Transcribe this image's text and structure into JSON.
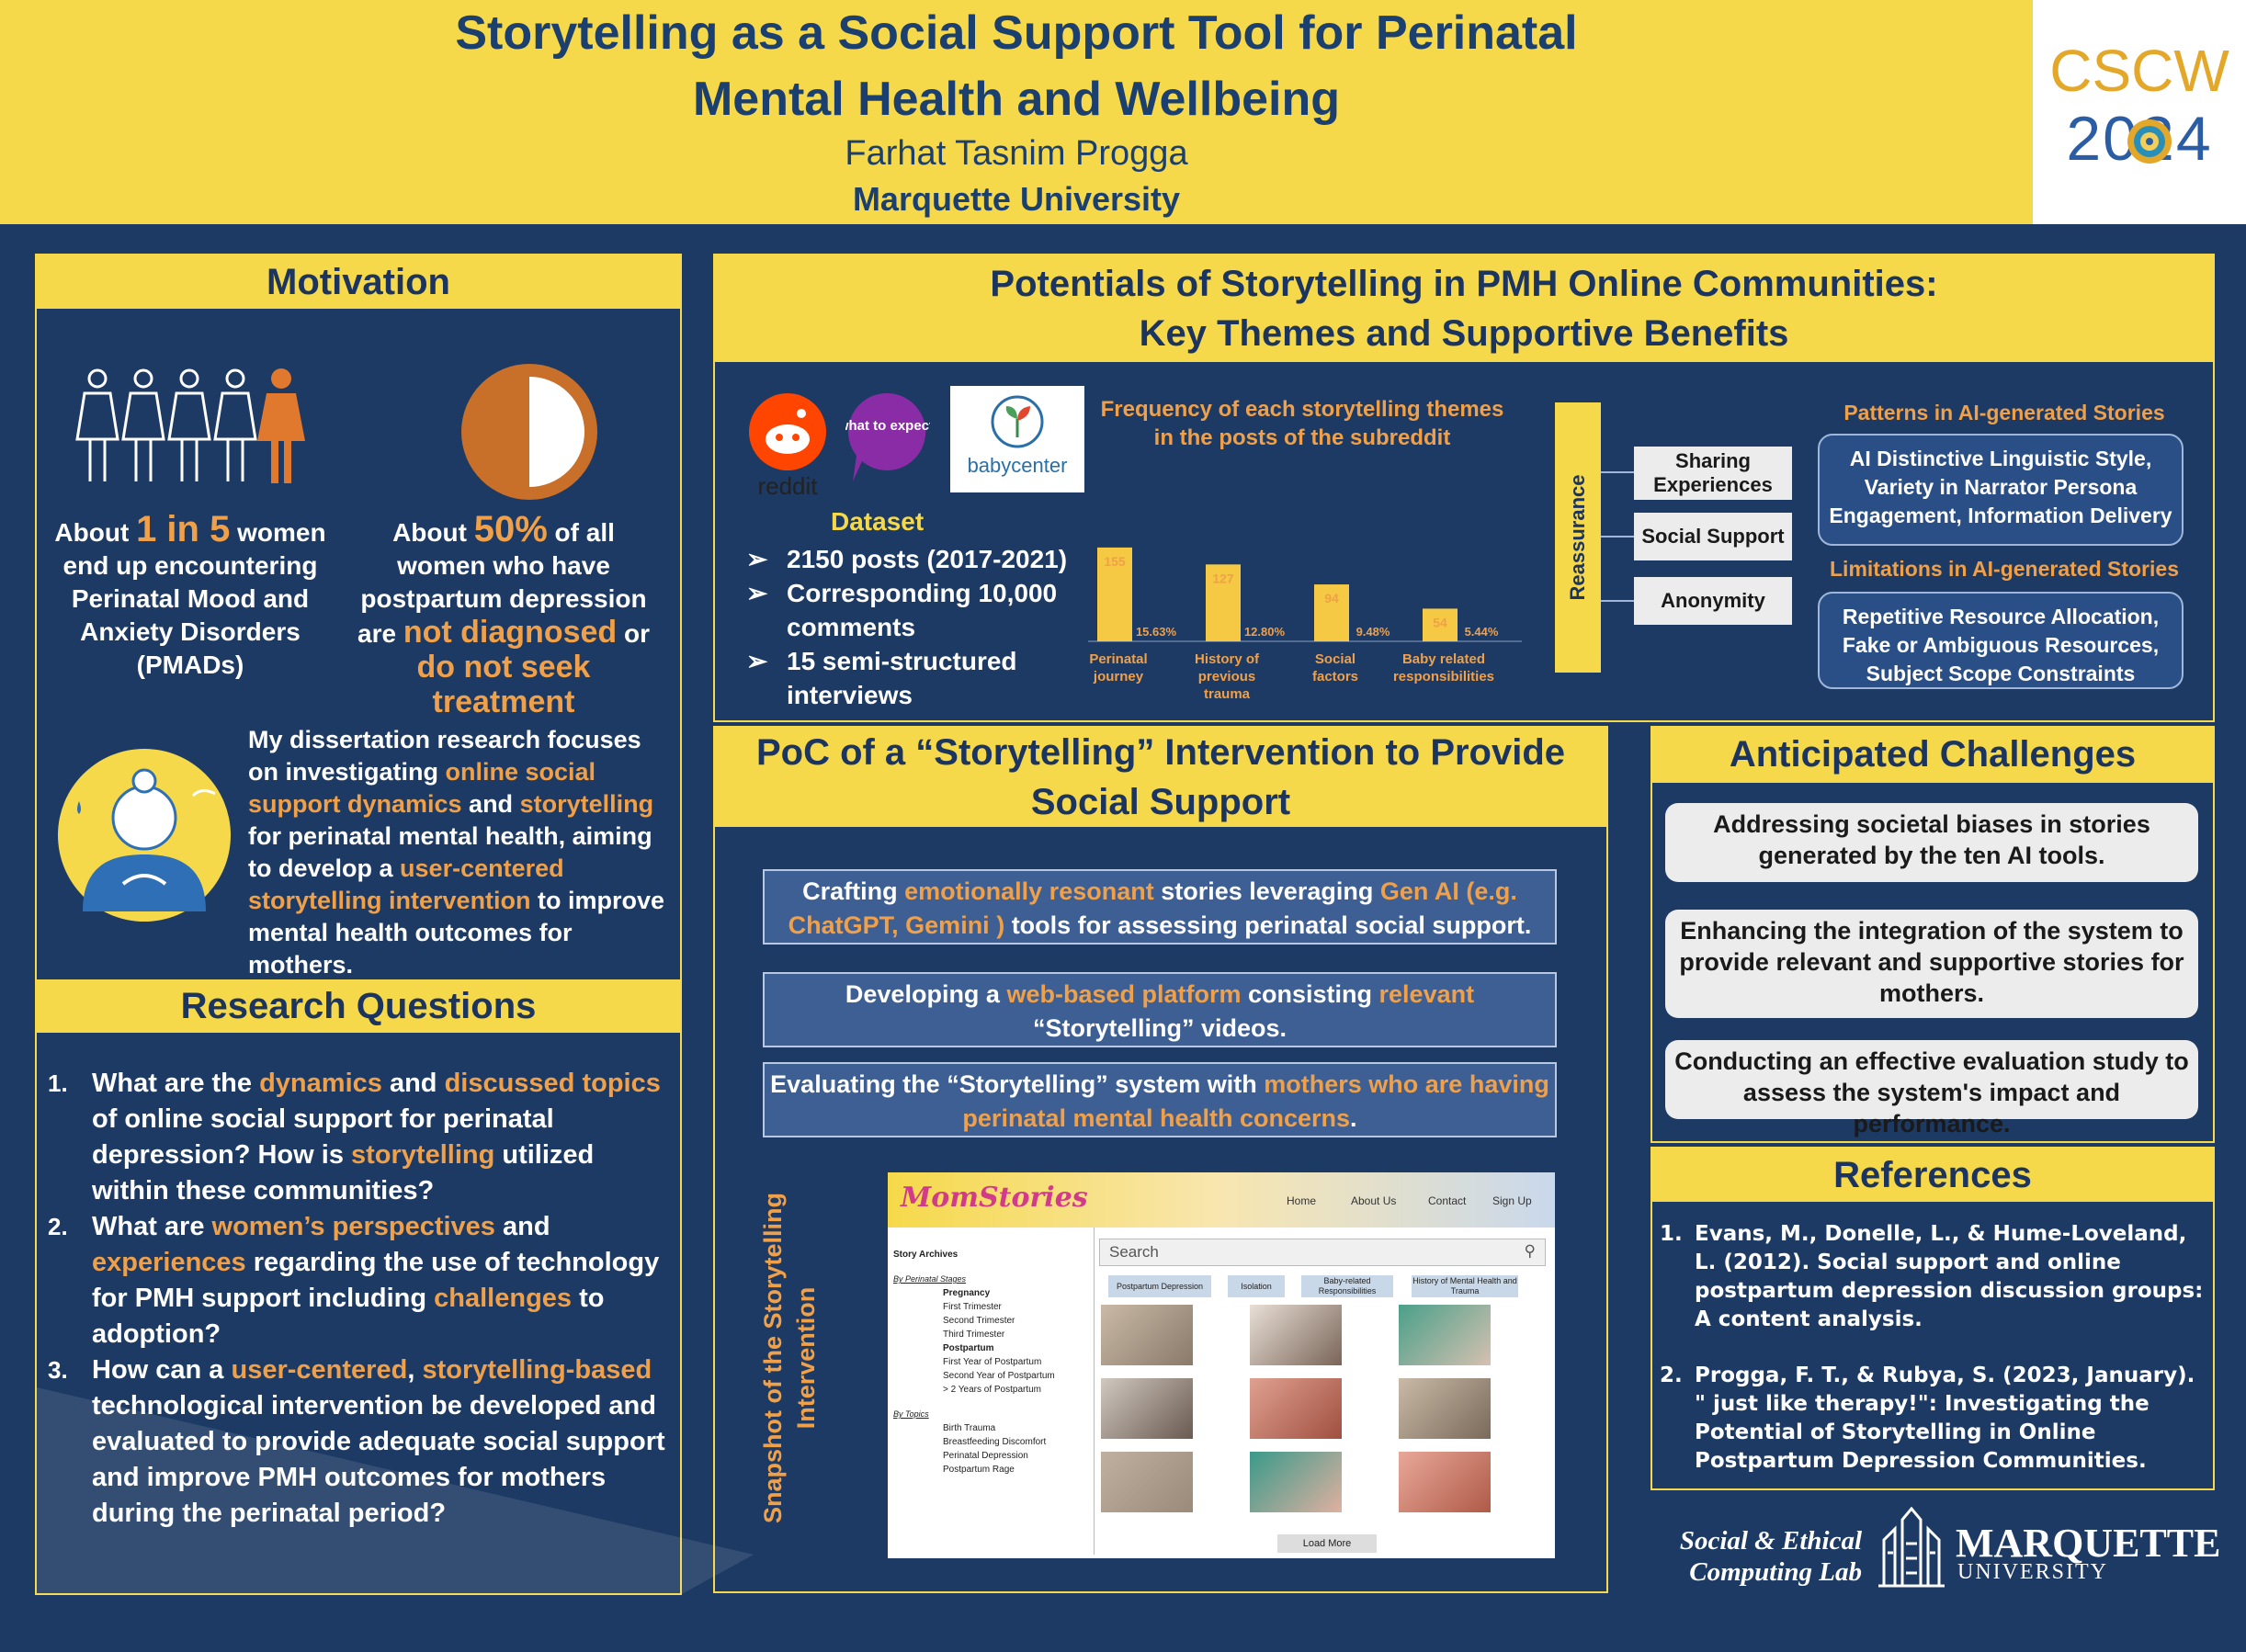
{
  "header": {
    "title_line1": "Storytelling as a Social Support Tool for Perinatal",
    "title_line2": "Mental Health and Wellbeing",
    "author": "Farhat Tasnim Progga",
    "affiliation": "Marquette University",
    "conf_word": "CSCW",
    "conf_year": "2024"
  },
  "motivation": {
    "title": "Motivation",
    "stat1": {
      "pre": "About ",
      "highlight": "1 in 5",
      "post": " women end up  encountering Perinatal Mood and Anxiety Disorders (PMADs)"
    },
    "stat2": {
      "pre": "About ",
      "highlight": "50%",
      "mid1": " of all women who have postpartum depression are ",
      "h2": "not diagnosed",
      "mid2": " or ",
      "h3": "do not seek treatment"
    },
    "dissertation": {
      "a": "My dissertation research focuses on investigating ",
      "h1": "online social support dynamics",
      "b": " and ",
      "h2": "storytelling",
      "c": " for perinatal mental health, aiming to develop a ",
      "h3": "user-centered storytelling intervention",
      "d": " to improve mental health outcomes for mothers."
    }
  },
  "research_questions": {
    "title": "Research Questions",
    "items": [
      {
        "num": "1.",
        "a": "What are the ",
        "h1": "dynamics",
        "b": " and ",
        "h2": "discussed topics",
        "c": " of online social support for perinatal depression? How is ",
        "h3": "storytelling",
        "d": " utilized within these communities?"
      },
      {
        "num": "2.",
        "a": "What are ",
        "h1": "women’s perspectives",
        "b": " and ",
        "h2": "experiences",
        "c": " regarding the use of technology for PMH support including ",
        "h3": "challenges ",
        "d": " to adoption?"
      },
      {
        "num": "3.",
        "a": "How can a ",
        "h1": "user-centered",
        "b": ", ",
        "h2": "storytelling-based",
        "c": " technological intervention be developed and evaluated to provide adequate social support and improve PMH outcomes for mothers during the perinatal period?",
        "h3": "",
        "d": ""
      }
    ]
  },
  "potentials": {
    "title_line1": "Potentials of Storytelling in PMH Online Communities:",
    "title_line2": "Key Themes and Supportive Benefits",
    "sources": [
      "reddit",
      "what to expect.",
      "babycenter"
    ],
    "dataset_label": "Dataset",
    "dataset_items": [
      "2150 posts (2017-2021)",
      "Corresponding 10,000 comments",
      "15 semi-structured interviews"
    ],
    "chart_title": "Frequency of each storytelling themes in the posts of the subreddit",
    "reassurance_label": "Reassurance",
    "reassurance_items": [
      "Sharing Experiences",
      "Social Support",
      "Anonymity"
    ],
    "patterns_label": "Patterns in AI-generated Stories",
    "patterns_text": "AI Distinctive Linguistic Style, Variety in Narrator Persona Engagement, Information Delivery",
    "limits_label": "Limitations in AI-generated Stories",
    "limits_text": "Repetitive Resource Allocation, Fake or Ambiguous Resources, Subject Scope Constraints"
  },
  "chart_data": {
    "type": "bar",
    "title": "Frequency of each storytelling themes in the posts of the subreddit",
    "categories": [
      "Perinatal journey",
      "History of previous trauma",
      "Social factors",
      "Baby related responsibilities"
    ],
    "values": [
      155,
      127,
      94,
      54
    ],
    "percent_labels": [
      "15.63%",
      "12.80%",
      "9.48%",
      "5.44%"
    ],
    "xlabel": "",
    "ylabel": "",
    "ylim": [
      0,
      170
    ],
    "grid": false,
    "bar_color": "#f6c944",
    "label_color": "#f0a048"
  },
  "poc": {
    "title_line1": "PoC of a “Storytelling” Intervention to Provide",
    "title_line2": "Social Support",
    "box1": {
      "a": "Crafting ",
      "h1": "emotionally resonant",
      "b": " stories leveraging ",
      "h2": "Gen AI (e.g. ChatGPT, Gemini )",
      "c": " tools for assessing perinatal social support."
    },
    "box2": {
      "a": "Developing a ",
      "h1": "web-based platform",
      "b": " consisting ",
      "h2": "relevant",
      "c": " “Storytelling” videos."
    },
    "box3": {
      "a": "Evaluating the “Storytelling” system with ",
      "h1": "mothers who are having perinatal mental health concerns",
      "b": "."
    },
    "snapshot_caption": "Snapshot of the Storytelling Intervention",
    "snapshot": {
      "logo": "MomStories",
      "nav": [
        "Home",
        "About Us",
        "Contact",
        "Sign Up"
      ],
      "search_placeholder": "Search",
      "archive_title": "Story Archives",
      "by_stages": "By Perinatal Stages",
      "pregnancy": "Pregnancy",
      "preg_items": [
        "First Trimester",
        "Second Trimester",
        "Third Trimester"
      ],
      "postpartum": "Postpartum",
      "post_items": [
        "First Year of Postpartum",
        "Second Year of Postpartum",
        "> 2 Years of Postpartum"
      ],
      "by_topics": "By Topics",
      "topic_items": [
        "Birth Trauma",
        "Breastfeeding Discomfort",
        "Perinatal Depression",
        "Postpartum Rage"
      ],
      "tabs": [
        "Postpartum Depression",
        "Isolation",
        "Baby-related Responsibilities",
        "History of Mental Health and Trauma"
      ],
      "load_more": "Load More"
    }
  },
  "challenges": {
    "title": "Anticipated Challenges",
    "items": [
      "Addressing societal biases in stories generated by the ten AI tools.",
      "Enhancing the integration of the system to provide relevant and supportive stories for mothers.",
      "Conducting an effective evaluation study to assess the system's impact and performance."
    ]
  },
  "references": {
    "title": "References",
    "items": [
      {
        "num": "1.",
        "text": "Evans, M., Donelle, L., & Hume-Loveland, L. (2012). Social support and online postpartum depression discussion groups: A content analysis."
      },
      {
        "num": "2.",
        "text": "Progga, F. T., & Rubya, S. (2023, January). \" just like therapy!\": Investigating the Potential of Storytelling in Online Postpartum Depression Communities."
      }
    ]
  },
  "footer": {
    "lab_name": "Social & Ethical Computing Lab",
    "univ_word": "MARQUETTE",
    "univ_sub": "UNIVERSITY"
  },
  "colors": {
    "navy": "#1c3a63",
    "yellow": "#f6d94a",
    "orange": "#f0a048"
  }
}
